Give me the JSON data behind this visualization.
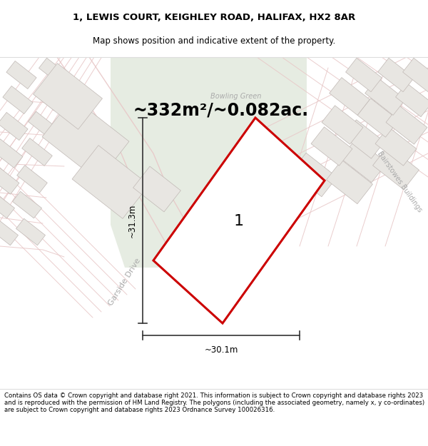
{
  "title_line1": "1, LEWIS COURT, KEIGHLEY ROAD, HALIFAX, HX2 8AR",
  "title_line2": "Map shows position and indicative extent of the property.",
  "area_text": "~332m²/~0.082ac.",
  "dim_width": "~30.1m",
  "dim_height": "~31.3m",
  "plot_label": "1",
  "bowling_green_label": "Bowling Green",
  "garside_drive_label": "Garside Drive",
  "bairstowes_label": "Bairstowes Buildings",
  "footer_text": "Contains OS data © Crown copyright and database right 2021. This information is subject to Crown copyright and database rights 2023 and is reproduced with the permission of HM Land Registry. The polygons (including the associated geometry, namely x, y co-ordinates) are subject to Crown copyright and database rights 2023 Ordnance Survey 100026316.",
  "bg_map_color": "#f2f0ed",
  "green_area_color": "#e6ece2",
  "road_color": "#ffffff",
  "road_stroke_color": "#e8c8c8",
  "plot_fill_color": "#ffffff",
  "plot_edge_color": "#cc0000",
  "building_outline_color": "#c8a8a8",
  "building_fill_color": "#e8e4e0",
  "building_edge_light": "#d0c8c4",
  "title_bg_color": "#ffffff",
  "footer_bg_color": "#ffffff",
  "dim_line_color": "#333333",
  "label_color": "#aaaaaa"
}
